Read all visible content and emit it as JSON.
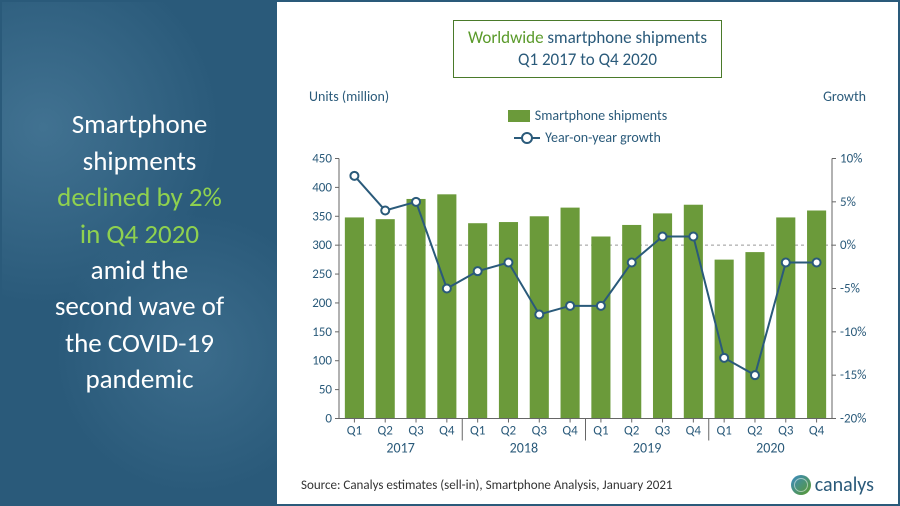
{
  "left_panel": {
    "line1": "Smartphone",
    "line2": "shipments",
    "highlight1": "declined by 2%",
    "highlight2": "in Q4 2020",
    "line3": "amid the",
    "line4": "second wave of",
    "line5": "the COVID-19",
    "line6": "pandemic"
  },
  "chart": {
    "title_prefix": "Worldwide",
    "title_rest": " smartphone shipments",
    "title_line2": "Q1 2017 to Q4 2020",
    "left_axis_label": "Units (million)",
    "right_axis_label": "Growth",
    "legend_bars": "Smartphone shipments",
    "legend_line": "Year-on-year growth",
    "y_left": {
      "min": 0,
      "max": 450,
      "step": 50,
      "ticks": [
        0,
        50,
        100,
        150,
        200,
        250,
        300,
        350,
        400,
        450
      ]
    },
    "y_right": {
      "min": -20,
      "max": 10,
      "step": 5,
      "ticks": [
        -20,
        -15,
        -10,
        -5,
        0,
        5,
        10
      ]
    },
    "quarters": [
      "Q1",
      "Q2",
      "Q3",
      "Q4",
      "Q1",
      "Q2",
      "Q3",
      "Q4",
      "Q1",
      "Q2",
      "Q3",
      "Q4",
      "Q1",
      "Q2",
      "Q3",
      "Q4"
    ],
    "years": [
      "2017",
      "2018",
      "2019",
      "2020"
    ],
    "bars": [
      348,
      345,
      380,
      388,
      338,
      340,
      350,
      365,
      315,
      335,
      355,
      370,
      275,
      288,
      348,
      360
    ],
    "growth": [
      8,
      4,
      5,
      -5,
      -3,
      -2,
      -8,
      -7,
      -7,
      -2,
      1,
      1,
      -13,
      -15,
      -2,
      -2
    ],
    "bar_color": "#6b9a3a",
    "line_color": "#2a5a7a",
    "axis_color": "#666",
    "text_color": "#2a5a7a",
    "tick_font_size": 13,
    "bar_width_ratio": 0.62
  },
  "footer": {
    "source": "Source: Canalys estimates (sell-in), Smartphone Analysis, January 2021",
    "logo_text": "canalys"
  }
}
